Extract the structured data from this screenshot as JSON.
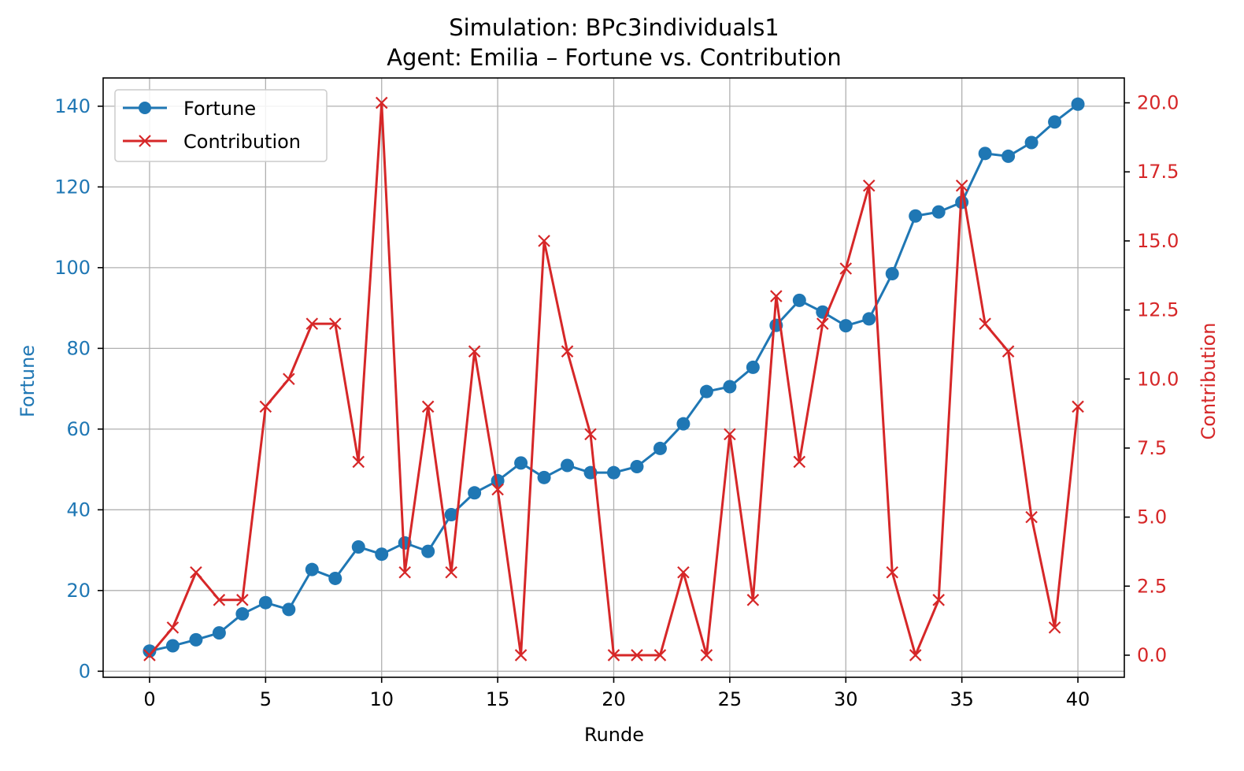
{
  "chart_data": {
    "type": "line",
    "title_line1": "Simulation: BPc3individuals1",
    "title_line2": "Agent: Emilia – Fortune vs. Contribution",
    "xlabel": "Runde",
    "ylabel_left": "Fortune",
    "ylabel_right": "Contribution",
    "xlim": [
      -2,
      42
    ],
    "ylim_left": [
      -1.5,
      147
    ],
    "ylim_right": [
      -0.8,
      20.9
    ],
    "x_ticks": [
      0,
      5,
      10,
      15,
      20,
      25,
      30,
      35,
      40
    ],
    "x_tick_labels": [
      "0",
      "5",
      "10",
      "15",
      "20",
      "25",
      "30",
      "35",
      "40"
    ],
    "y_left_ticks": [
      0,
      20,
      40,
      60,
      80,
      100,
      120,
      140
    ],
    "y_left_tick_labels": [
      "0",
      "20",
      "40",
      "60",
      "80",
      "100",
      "120",
      "140"
    ],
    "y_right_ticks": [
      0,
      2.5,
      5,
      7.5,
      10,
      12.5,
      15,
      17.5,
      20
    ],
    "y_right_tick_labels": [
      "0.0",
      "2.5",
      "5.0",
      "7.5",
      "10.0",
      "12.5",
      "15.0",
      "17.5",
      "20.0"
    ],
    "grid": true,
    "legend_position": "top-left",
    "x": [
      0,
      1,
      2,
      3,
      4,
      5,
      6,
      7,
      8,
      9,
      10,
      11,
      12,
      13,
      14,
      15,
      16,
      17,
      18,
      19,
      20,
      21,
      22,
      23,
      24,
      25,
      26,
      27,
      28,
      29,
      30,
      31,
      32,
      33,
      34,
      35,
      36,
      37,
      38,
      39,
      40
    ],
    "series": [
      {
        "name": "Fortune",
        "axis": "left",
        "marker": "circle",
        "color": "#1f77b4",
        "values": [
          5,
          6.3,
          7.8,
          9.5,
          14.2,
          17,
          15.3,
          25.2,
          23,
          30.8,
          29,
          31.8,
          29.7,
          38.8,
          44.2,
          47.2,
          51.6,
          48,
          51,
          49.2,
          49.2,
          50.7,
          55.2,
          61.3,
          69.3,
          70.5,
          75.3,
          85.7,
          91.9,
          89,
          85.6,
          87.3,
          98.5,
          112.8,
          113.8,
          116.2,
          128.3,
          127.6,
          131,
          136.1,
          140.5
        ]
      },
      {
        "name": "Contribution",
        "axis": "right",
        "marker": "x",
        "color": "#d62728",
        "values": [
          0,
          1,
          3,
          2,
          2,
          9,
          10,
          12,
          12,
          7,
          20,
          3,
          9,
          3,
          11,
          6,
          0,
          15,
          11,
          8,
          0,
          0,
          0,
          3,
          0,
          8,
          2,
          13,
          7,
          12,
          14,
          17,
          3,
          0,
          2,
          17,
          12,
          11,
          5,
          1,
          9
        ]
      }
    ]
  },
  "colors": {
    "axis": "#000000",
    "grid": "#b0b0b0",
    "left_accent": "#1f77b4",
    "right_accent": "#d62728"
  }
}
